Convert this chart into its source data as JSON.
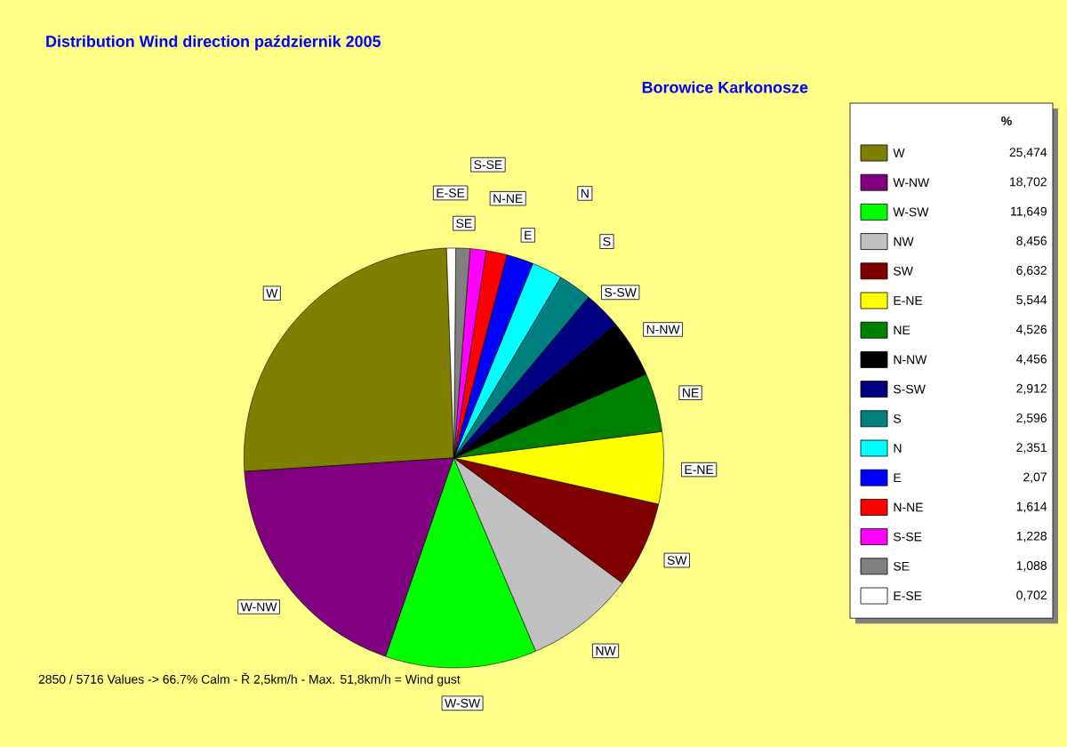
{
  "chart_data": {
    "type": "pie",
    "title": "Distribution Wind direction   październik 2005",
    "subtitle": "Borowice Karkonosze",
    "legend_title": "%",
    "legend": "right",
    "categories": [
      "W",
      "W-NW",
      "W-SW",
      "NW",
      "SW",
      "E-NE",
      "NE",
      "N-NW",
      "S-SW",
      "S",
      "N",
      "E",
      "N-NE",
      "S-SE",
      "SE",
      "E-SE"
    ],
    "values": [
      25.474,
      18.702,
      11.649,
      8.456,
      6.632,
      5.544,
      4.526,
      4.456,
      2.912,
      2.596,
      2.351,
      2.07,
      1.614,
      1.228,
      1.088,
      0.702
    ],
    "value_labels": [
      "25,474",
      "18,702",
      "11,649",
      "8,456",
      "6,632",
      "5,544",
      "4,526",
      "4,456",
      "2,912",
      "2,596",
      "2,351",
      "2,07",
      "1,614",
      "1,228",
      "1,088",
      "0,702"
    ],
    "colors": [
      "#808000",
      "#800080",
      "#00ff00",
      "#c0c0c0",
      "#800000",
      "#ffff00",
      "#008000",
      "#000000",
      "#000080",
      "#008080",
      "#00ffff",
      "#0000ff",
      "#ff0000",
      "#ff00ff",
      "#808080",
      "#ffffff"
    ],
    "annotations": [
      "2850 / 5716 Values  -> 66.7% Calm   -   Ř 2,5km/h  -  Max. 51,8km/h = Wind gust"
    ]
  }
}
